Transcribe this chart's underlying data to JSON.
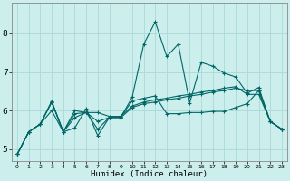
{
  "xlabel": "Humidex (Indice chaleur)",
  "bg_color": "#cceeed",
  "grid_color": "#aad8d8",
  "line_color": "#006666",
  "xlim": [
    -0.5,
    23.5
  ],
  "ylim": [
    4.7,
    8.8
  ],
  "xticks": [
    0,
    1,
    2,
    3,
    4,
    5,
    6,
    7,
    8,
    9,
    10,
    11,
    12,
    13,
    14,
    15,
    16,
    17,
    18,
    19,
    20,
    21,
    22,
    23
  ],
  "yticks": [
    5,
    6,
    7,
    8
  ],
  "lines": [
    {
      "x": [
        0,
        1,
        2,
        3,
        4,
        5,
        6,
        7,
        8,
        9,
        10,
        11,
        12,
        13,
        14,
        15,
        16,
        17,
        18,
        19,
        20,
        21,
        22,
        23
      ],
      "y": [
        4.87,
        5.45,
        5.65,
        6.25,
        5.45,
        5.55,
        6.05,
        5.35,
        5.82,
        5.82,
        6.35,
        7.72,
        8.3,
        7.4,
        7.72,
        6.2,
        7.25,
        7.15,
        6.97,
        6.87,
        6.45,
        6.6,
        5.72,
        5.52
      ]
    },
    {
      "x": [
        0,
        1,
        2,
        3,
        4,
        5,
        6,
        7,
        8,
        9,
        10,
        11,
        12,
        13,
        14,
        15,
        16,
        17,
        18,
        19,
        20,
        21,
        22,
        23
      ],
      "y": [
        4.87,
        5.45,
        5.65,
        6.22,
        5.45,
        6.0,
        5.95,
        5.95,
        5.85,
        5.85,
        6.25,
        6.32,
        6.38,
        5.92,
        5.92,
        5.95,
        5.95,
        5.98,
        5.98,
        6.08,
        6.18,
        6.52,
        5.72,
        5.52
      ]
    },
    {
      "x": [
        0,
        1,
        2,
        3,
        4,
        5,
        6,
        7,
        8,
        9,
        10,
        11,
        12,
        13,
        14,
        15,
        16,
        17,
        18,
        19,
        20,
        21,
        22,
        23
      ],
      "y": [
        4.87,
        5.45,
        5.65,
        6.22,
        5.45,
        5.92,
        5.95,
        5.72,
        5.82,
        5.85,
        6.12,
        6.22,
        6.28,
        6.32,
        6.38,
        6.42,
        6.48,
        6.52,
        6.58,
        6.62,
        6.42,
        6.42,
        5.72,
        5.52
      ]
    },
    {
      "x": [
        0,
        1,
        2,
        3,
        4,
        5,
        6,
        7,
        8,
        9,
        10,
        11,
        12,
        13,
        14,
        15,
        16,
        17,
        18,
        19,
        20,
        21,
        22,
        23
      ],
      "y": [
        4.87,
        5.45,
        5.65,
        6.0,
        5.45,
        5.82,
        5.95,
        5.52,
        5.82,
        5.82,
        6.08,
        6.18,
        6.22,
        6.28,
        6.32,
        6.38,
        6.42,
        6.48,
        6.52,
        6.58,
        6.52,
        6.52,
        5.72,
        5.52
      ]
    }
  ]
}
